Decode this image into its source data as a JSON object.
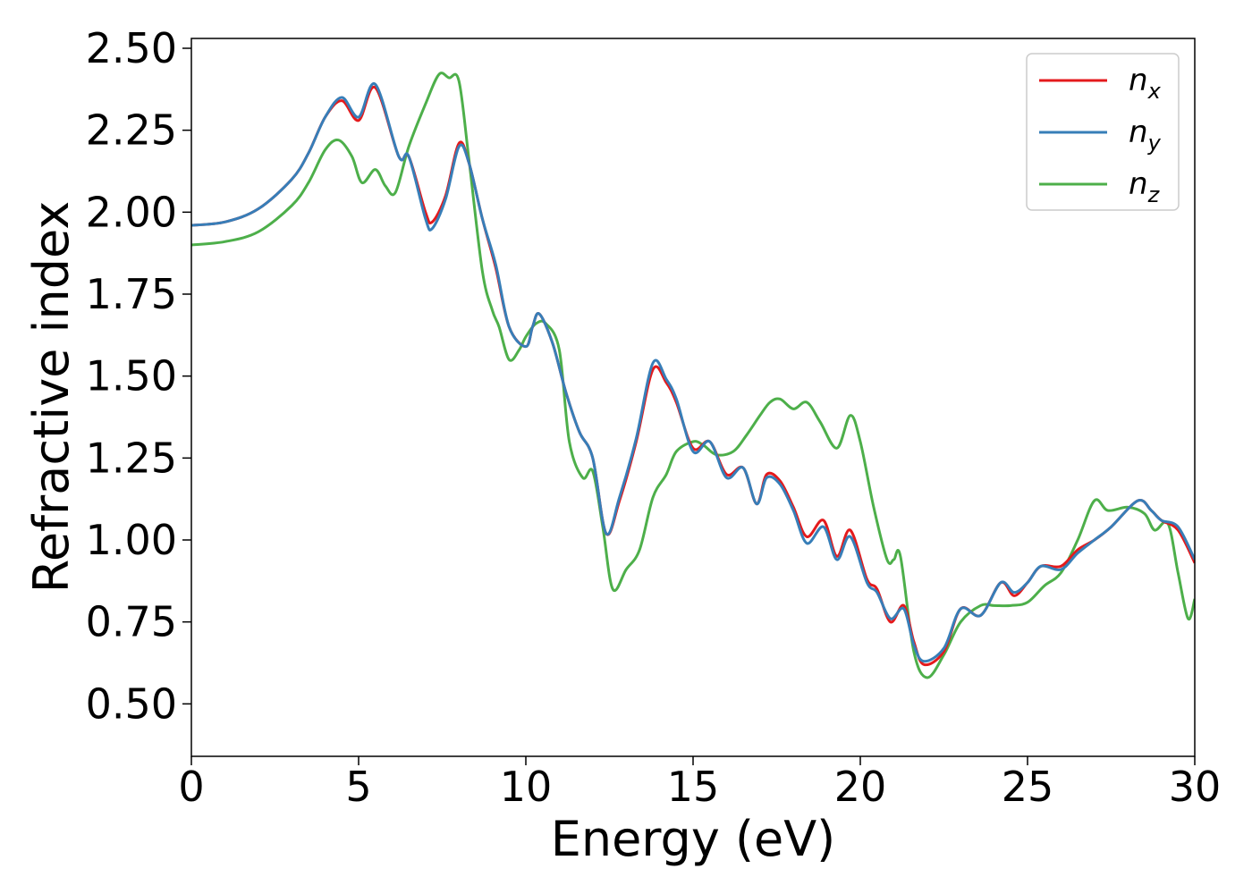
{
  "chart_data": {
    "type": "line",
    "xlabel": "Energy (eV)",
    "ylabel": "Refractive index",
    "xlim": [
      0,
      30
    ],
    "ylim": [
      0.34,
      2.53
    ],
    "xticks": [
      "0",
      "5",
      "10",
      "15",
      "20",
      "25",
      "30"
    ],
    "yticks": [
      "0.50",
      "0.75",
      "1.00",
      "1.25",
      "1.50",
      "1.75",
      "2.00",
      "2.25",
      "2.50"
    ],
    "grid": false,
    "legend_position": "top-right",
    "series": [
      {
        "name": "n_x",
        "legend_base": "n",
        "legend_sub": "x",
        "color": "#e41a1c",
        "points": [
          [
            0,
            1.96
          ],
          [
            1,
            1.97
          ],
          [
            2,
            2.01
          ],
          [
            3,
            2.1
          ],
          [
            3.5,
            2.18
          ],
          [
            4,
            2.29
          ],
          [
            4.5,
            2.34
          ],
          [
            5,
            2.28
          ],
          [
            5.5,
            2.38
          ],
          [
            6.2,
            2.17
          ],
          [
            6.5,
            2.17
          ],
          [
            7,
            2.0
          ],
          [
            7.2,
            1.97
          ],
          [
            7.6,
            2.05
          ],
          [
            8,
            2.21
          ],
          [
            8.3,
            2.15
          ],
          [
            8.7,
            1.98
          ],
          [
            9.1,
            1.83
          ],
          [
            9.5,
            1.65
          ],
          [
            10,
            1.59
          ],
          [
            10.2,
            1.65
          ],
          [
            10.4,
            1.69
          ],
          [
            10.8,
            1.6
          ],
          [
            11.2,
            1.45
          ],
          [
            11.6,
            1.33
          ],
          [
            12,
            1.25
          ],
          [
            12.4,
            1.02
          ],
          [
            12.8,
            1.12
          ],
          [
            13.3,
            1.3
          ],
          [
            13.8,
            1.52
          ],
          [
            14.2,
            1.48
          ],
          [
            14.5,
            1.42
          ],
          [
            15,
            1.28
          ],
          [
            15.5,
            1.3
          ],
          [
            16,
            1.2
          ],
          [
            16.5,
            1.22
          ],
          [
            16.9,
            1.11
          ],
          [
            17.2,
            1.2
          ],
          [
            17.6,
            1.18
          ],
          [
            18,
            1.1
          ],
          [
            18.4,
            1.01
          ],
          [
            18.9,
            1.06
          ],
          [
            19.3,
            0.95
          ],
          [
            19.7,
            1.03
          ],
          [
            20.2,
            0.88
          ],
          [
            20.5,
            0.85
          ],
          [
            20.9,
            0.75
          ],
          [
            21.3,
            0.8
          ],
          [
            21.6,
            0.69
          ],
          [
            21.9,
            0.62
          ],
          [
            22.5,
            0.66
          ],
          [
            23,
            0.79
          ],
          [
            23.6,
            0.77
          ],
          [
            24.2,
            0.87
          ],
          [
            24.6,
            0.83
          ],
          [
            25,
            0.87
          ],
          [
            25.4,
            0.92
          ],
          [
            26,
            0.92
          ],
          [
            26.5,
            0.97
          ],
          [
            27,
            1.0
          ],
          [
            27.5,
            1.04
          ],
          [
            28.3,
            1.12
          ],
          [
            28.7,
            1.09
          ],
          [
            29,
            1.06
          ],
          [
            29.5,
            1.03
          ],
          [
            30,
            0.93
          ]
        ]
      },
      {
        "name": "n_y",
        "legend_base": "n",
        "legend_sub": "y",
        "color": "#377eb8",
        "points": [
          [
            0,
            1.96
          ],
          [
            1,
            1.97
          ],
          [
            2,
            2.01
          ],
          [
            3,
            2.1
          ],
          [
            3.5,
            2.18
          ],
          [
            4,
            2.29
          ],
          [
            4.5,
            2.35
          ],
          [
            5,
            2.29
          ],
          [
            5.5,
            2.39
          ],
          [
            6.2,
            2.17
          ],
          [
            6.5,
            2.17
          ],
          [
            7,
            1.98
          ],
          [
            7.2,
            1.95
          ],
          [
            7.6,
            2.04
          ],
          [
            8,
            2.2
          ],
          [
            8.3,
            2.15
          ],
          [
            8.7,
            1.98
          ],
          [
            9.1,
            1.84
          ],
          [
            9.5,
            1.65
          ],
          [
            10,
            1.59
          ],
          [
            10.2,
            1.65
          ],
          [
            10.4,
            1.69
          ],
          [
            10.8,
            1.6
          ],
          [
            11.2,
            1.45
          ],
          [
            11.6,
            1.33
          ],
          [
            12,
            1.25
          ],
          [
            12.4,
            1.02
          ],
          [
            12.8,
            1.13
          ],
          [
            13.3,
            1.31
          ],
          [
            13.8,
            1.54
          ],
          [
            14.2,
            1.49
          ],
          [
            14.5,
            1.43
          ],
          [
            15,
            1.27
          ],
          [
            15.5,
            1.3
          ],
          [
            16,
            1.19
          ],
          [
            16.5,
            1.22
          ],
          [
            16.9,
            1.11
          ],
          [
            17.2,
            1.19
          ],
          [
            17.6,
            1.17
          ],
          [
            18,
            1.09
          ],
          [
            18.4,
            0.99
          ],
          [
            18.9,
            1.04
          ],
          [
            19.3,
            0.94
          ],
          [
            19.7,
            1.01
          ],
          [
            20.2,
            0.87
          ],
          [
            20.5,
            0.84
          ],
          [
            20.9,
            0.76
          ],
          [
            21.3,
            0.79
          ],
          [
            21.6,
            0.68
          ],
          [
            21.9,
            0.63
          ],
          [
            22.5,
            0.67
          ],
          [
            23,
            0.79
          ],
          [
            23.6,
            0.77
          ],
          [
            24.2,
            0.87
          ],
          [
            24.6,
            0.84
          ],
          [
            25,
            0.87
          ],
          [
            25.4,
            0.92
          ],
          [
            26,
            0.91
          ],
          [
            26.5,
            0.96
          ],
          [
            27,
            1.0
          ],
          [
            27.5,
            1.04
          ],
          [
            28.3,
            1.12
          ],
          [
            28.7,
            1.09
          ],
          [
            29,
            1.06
          ],
          [
            29.5,
            1.04
          ],
          [
            30,
            0.94
          ]
        ]
      },
      {
        "name": "n_z",
        "legend_base": "n",
        "legend_sub": "z",
        "color": "#4daf4a",
        "points": [
          [
            0,
            1.9
          ],
          [
            1,
            1.91
          ],
          [
            2,
            1.94
          ],
          [
            3,
            2.02
          ],
          [
            3.5,
            2.09
          ],
          [
            4,
            2.19
          ],
          [
            4.4,
            2.22
          ],
          [
            4.8,
            2.17
          ],
          [
            5.1,
            2.09
          ],
          [
            5.5,
            2.13
          ],
          [
            5.8,
            2.08
          ],
          [
            6.1,
            2.06
          ],
          [
            6.5,
            2.2
          ],
          [
            7,
            2.33
          ],
          [
            7.4,
            2.42
          ],
          [
            7.7,
            2.41
          ],
          [
            8,
            2.4
          ],
          [
            8.3,
            2.16
          ],
          [
            8.7,
            1.82
          ],
          [
            9,
            1.7
          ],
          [
            9.2,
            1.65
          ],
          [
            9.5,
            1.55
          ],
          [
            9.8,
            1.58
          ],
          [
            10,
            1.62
          ],
          [
            10.3,
            1.66
          ],
          [
            10.6,
            1.66
          ],
          [
            11,
            1.58
          ],
          [
            11.3,
            1.3
          ],
          [
            11.7,
            1.19
          ],
          [
            12,
            1.21
          ],
          [
            12.3,
            1.04
          ],
          [
            12.6,
            0.85
          ],
          [
            13,
            0.91
          ],
          [
            13.4,
            0.97
          ],
          [
            13.8,
            1.13
          ],
          [
            14.2,
            1.2
          ],
          [
            14.5,
            1.27
          ],
          [
            15,
            1.3
          ],
          [
            15.3,
            1.29
          ],
          [
            15.7,
            1.26
          ],
          [
            16.2,
            1.27
          ],
          [
            16.6,
            1.32
          ],
          [
            17,
            1.38
          ],
          [
            17.3,
            1.42
          ],
          [
            17.6,
            1.43
          ],
          [
            18,
            1.4
          ],
          [
            18.4,
            1.42
          ],
          [
            18.8,
            1.36
          ],
          [
            19.3,
            1.28
          ],
          [
            19.7,
            1.38
          ],
          [
            20,
            1.3
          ],
          [
            20.4,
            1.1
          ],
          [
            20.8,
            0.94
          ],
          [
            21,
            0.94
          ],
          [
            21.2,
            0.95
          ],
          [
            21.6,
            0.66
          ],
          [
            22,
            0.58
          ],
          [
            22.5,
            0.65
          ],
          [
            23,
            0.75
          ],
          [
            23.6,
            0.8
          ],
          [
            24,
            0.8
          ],
          [
            24.5,
            0.8
          ],
          [
            25,
            0.81
          ],
          [
            25.5,
            0.86
          ],
          [
            26,
            0.9
          ],
          [
            26.5,
            1.0
          ],
          [
            27,
            1.12
          ],
          [
            27.4,
            1.09
          ],
          [
            28,
            1.1
          ],
          [
            28.5,
            1.08
          ],
          [
            28.8,
            1.03
          ],
          [
            29.2,
            1.05
          ],
          [
            29.5,
            0.9
          ],
          [
            29.8,
            0.76
          ],
          [
            30,
            0.82
          ]
        ]
      }
    ]
  }
}
